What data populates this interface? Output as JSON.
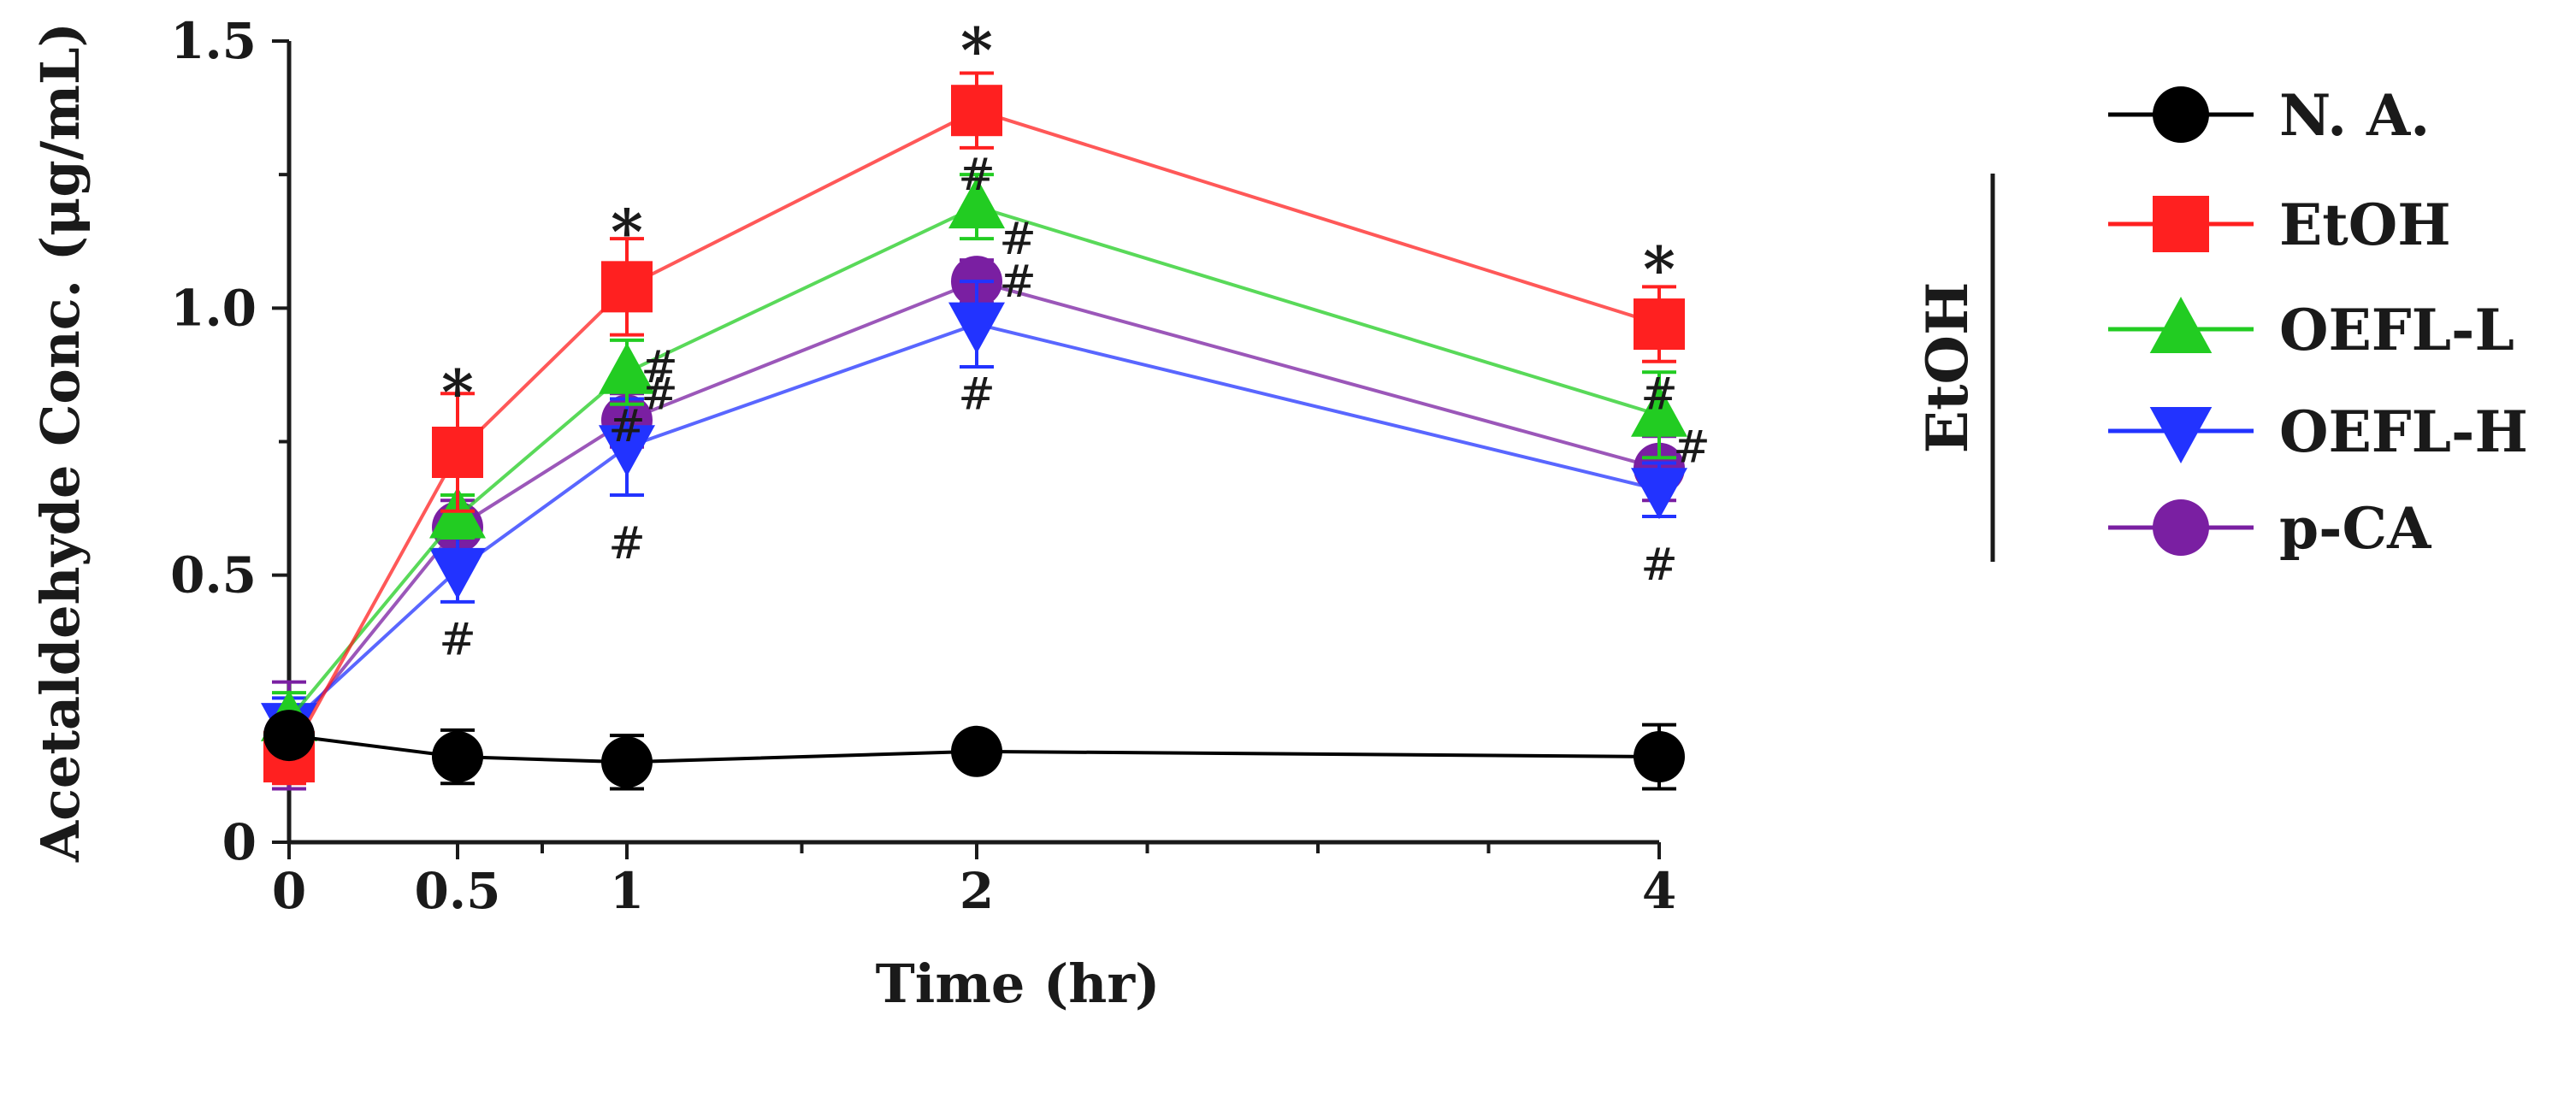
{
  "chart_data": {
    "type": "line",
    "title": "",
    "xlabel": "Time (hr)",
    "ylabel": "Acetaldehyde Conc. (μg/mL)",
    "ylim": [
      0,
      1.5
    ],
    "x_ticks": [
      "0",
      "0.5",
      "1",
      "2",
      "4"
    ],
    "y_ticks": [
      "0",
      "0.5",
      "1.0",
      "1.5"
    ],
    "legend_group_label": "EtOH",
    "series": [
      {
        "name": "N. A.",
        "color": "#000000",
        "marker": "circle",
        "x": [
          0,
          0.5,
          1,
          2,
          4
        ],
        "values": [
          0.2,
          0.16,
          0.15,
          0.17,
          0.16
        ],
        "errors": [
          0.03,
          0.05,
          0.05,
          0.01,
          0.06
        ]
      },
      {
        "name": "EtOH",
        "color": "#ff2020",
        "marker": "square",
        "x": [
          0,
          0.5,
          1,
          2,
          4
        ],
        "values": [
          0.16,
          0.73,
          1.04,
          1.37,
          0.97
        ],
        "errors": [
          0.05,
          0.11,
          0.09,
          0.07,
          0.07
        ]
      },
      {
        "name": "OEFL-L",
        "color": "#22cc22",
        "marker": "triangle-up",
        "x": [
          0,
          0.5,
          1,
          2,
          4
        ],
        "values": [
          0.23,
          0.61,
          0.88,
          1.19,
          0.8
        ],
        "errors": [
          0.05,
          0.04,
          0.06,
          0.06,
          0.08
        ]
      },
      {
        "name": "OEFL-H",
        "color": "#2233ff",
        "marker": "triangle-down",
        "x": [
          0,
          0.5,
          1,
          2,
          4
        ],
        "values": [
          0.22,
          0.51,
          0.74,
          0.97,
          0.66
        ],
        "errors": [
          0.05,
          0.06,
          0.09,
          0.08,
          0.05
        ]
      },
      {
        "name": "p-CA",
        "color": "#7a1fa2",
        "marker": "circle",
        "x": [
          0,
          0.5,
          1,
          2,
          4
        ],
        "values": [
          0.2,
          0.59,
          0.79,
          1.05,
          0.7
        ],
        "errors": [
          0.1,
          0.05,
          0.05,
          0.04,
          0.06
        ]
      }
    ],
    "annotations": [
      {
        "text": "*",
        "x": 0.5,
        "y": 0.86
      },
      {
        "text": "*",
        "x": 1,
        "y": 1.16
      },
      {
        "text": "*",
        "x": 2,
        "y": 1.5
      },
      {
        "text": "*",
        "x": 4,
        "y": 1.09
      },
      {
        "text": "#",
        "x": 0.5,
        "y": 0.38
      },
      {
        "text": "#",
        "x": 1,
        "y": 0.89
      },
      {
        "text": "#",
        "x": 1,
        "y": 0.84
      },
      {
        "text": "#",
        "x": 1,
        "y": 0.78
      },
      {
        "text": "#",
        "x": 1,
        "y": 0.56
      },
      {
        "text": "#",
        "x": 2,
        "y": 1.25
      },
      {
        "text": "#",
        "x": 2,
        "y": 1.13
      },
      {
        "text": "#",
        "x": 2,
        "y": 1.05
      },
      {
        "text": "#",
        "x": 2,
        "y": 0.84
      },
      {
        "text": "#",
        "x": 4,
        "y": 0.84
      },
      {
        "text": "#",
        "x": 4,
        "y": 0.74
      },
      {
        "text": "#",
        "x": 4,
        "y": 0.52
      }
    ]
  }
}
